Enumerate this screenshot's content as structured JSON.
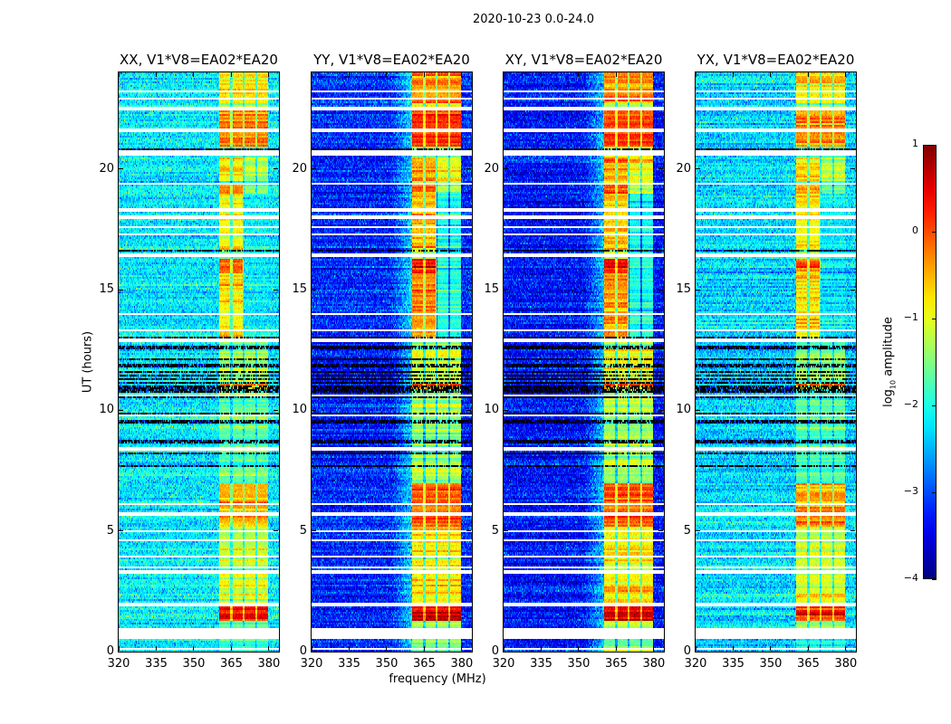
{
  "figure": {
    "suptitle": "2020-10-23 0.0-24.0",
    "xlabel": "frequency (MHz)",
    "ylabel": "UT (hours)"
  },
  "chart_data": {
    "type": "heatmap",
    "title": "2020-10-23 0.0-24.0",
    "xlabel": "frequency (MHz)",
    "ylabel": "UT (hours)",
    "xlim": [
      320,
      384
    ],
    "ylim": [
      0,
      24
    ],
    "xticks": [
      320,
      335,
      350,
      365,
      380
    ],
    "yticks": [
      0,
      5,
      10,
      15,
      20
    ],
    "colorbar": {
      "label_prefix": "log",
      "label_sub": "10",
      "label_suffix": " amplitude",
      "range": [
        -4,
        1
      ],
      "ticks": [
        1,
        0,
        -1,
        -2,
        -3,
        -4
      ],
      "tick_labels": [
        "1",
        "0",
        "−1",
        "−2",
        "−3",
        "−4"
      ],
      "colormap": "jet"
    },
    "rfi_band_MHz": [
      360,
      379.7
    ],
    "subband_edges_MHz": [
      365,
      370,
      375
    ],
    "rfi_default_log_amp": -1.2,
    "rfi_events": [
      {
        "ut": [
          22.7,
          24
        ],
        "freq": [
          360,
          379.7
        ],
        "log_amp": -0.4
      },
      {
        "ut": [
          20.9,
          22.5
        ],
        "freq": [
          360,
          379.7
        ],
        "log_amp": 0.1
      },
      {
        "ut": [
          19.5,
          20.5
        ],
        "freq": [
          360,
          379.7
        ],
        "log_amp": -0.9
      },
      {
        "ut": [
          19.5,
          20.5
        ],
        "freq": [
          360,
          370
        ],
        "log_amp": -0.4
      },
      {
        "ut": [
          19.0,
          19.45
        ],
        "freq": [
          360,
          370
        ],
        "log_amp": 0.0
      },
      {
        "ut": [
          16.6,
          19.0
        ],
        "freq": [
          360,
          370
        ],
        "log_amp": -0.5
      },
      {
        "ut": [
          15.7,
          16.3
        ],
        "freq": [
          360,
          370
        ],
        "log_amp": 0.3
      },
      {
        "ut": [
          14.6,
          15.7
        ],
        "freq": [
          359,
          371
        ],
        "log_amp": -0.3
      },
      {
        "ut": [
          13.0,
          14.6
        ],
        "freq": [
          360,
          370
        ],
        "log_amp": -0.4
      },
      {
        "ut": [
          13.0,
          19.0
        ],
        "freq": [
          370,
          379.7
        ],
        "log_amp": -2.0
      },
      {
        "ut": [
          11.2,
          12.7
        ],
        "freq": [
          360,
          379.7
        ],
        "log_amp": -0.9
      },
      {
        "ut": [
          10.85,
          11.1
        ],
        "freq": [
          360,
          379.7
        ],
        "log_amp": 0.2
      },
      {
        "ut": [
          7.0,
          10.5
        ],
        "freq": [
          360,
          379.7
        ],
        "log_amp": -1.3
      },
      {
        "ut": [
          5.2,
          7.0
        ],
        "freq": [
          360,
          379.7
        ],
        "log_amp": -0.1
      },
      {
        "ut": [
          3.5,
          5.2
        ],
        "freq": [
          360,
          379.7
        ],
        "log_amp": -0.8
      },
      {
        "ut": [
          2.0,
          3.4
        ],
        "freq": [
          360,
          379.7
        ],
        "log_amp": -0.7
      },
      {
        "ut": [
          1.3,
          2.0
        ],
        "freq": [
          360,
          379.7
        ],
        "log_amp": 0.6
      },
      {
        "ut": [
          0,
          0.55
        ],
        "freq": [
          360,
          379.7
        ],
        "log_amp": -1.5
      }
    ],
    "flagged_ut_ranges": [
      [
        0.55,
        1.0
      ],
      [
        16.35,
        16.5
      ],
      [
        20.55,
        20.75
      ],
      [
        22.45,
        22.6
      ]
    ],
    "flagged_ut_lines": [
      0.1,
      1.95,
      3.3,
      3.5,
      3.95,
      4.6,
      5.0,
      5.7,
      6.1,
      8.4,
      9.8,
      10.6,
      12.9,
      13.3,
      14.0,
      17.3,
      17.6,
      18.0,
      18.3,
      19.4,
      21.6,
      22.9,
      23.2
    ],
    "dark_ut_range": [
      7.4,
      12.7
    ],
    "dark_ut_lines": [
      3.35,
      16.6,
      20.8,
      13.0
    ],
    "panels": [
      {
        "title": "XX, V1*V8=EA02*EA20",
        "background_log_amp": -2.2,
        "rfi_offset": -0.35
      },
      {
        "title": "YY, V1*V8=EA02*EA20",
        "background_log_amp": -3.2,
        "rfi_offset": 0.0
      },
      {
        "title": "XY, V1*V8=EA02*EA20",
        "background_log_amp": -3.3,
        "rfi_offset": 0.0
      },
      {
        "title": "YX, V1*V8=EA02*EA20",
        "background_log_amp": -2.3,
        "rfi_offset": -0.35
      }
    ]
  }
}
